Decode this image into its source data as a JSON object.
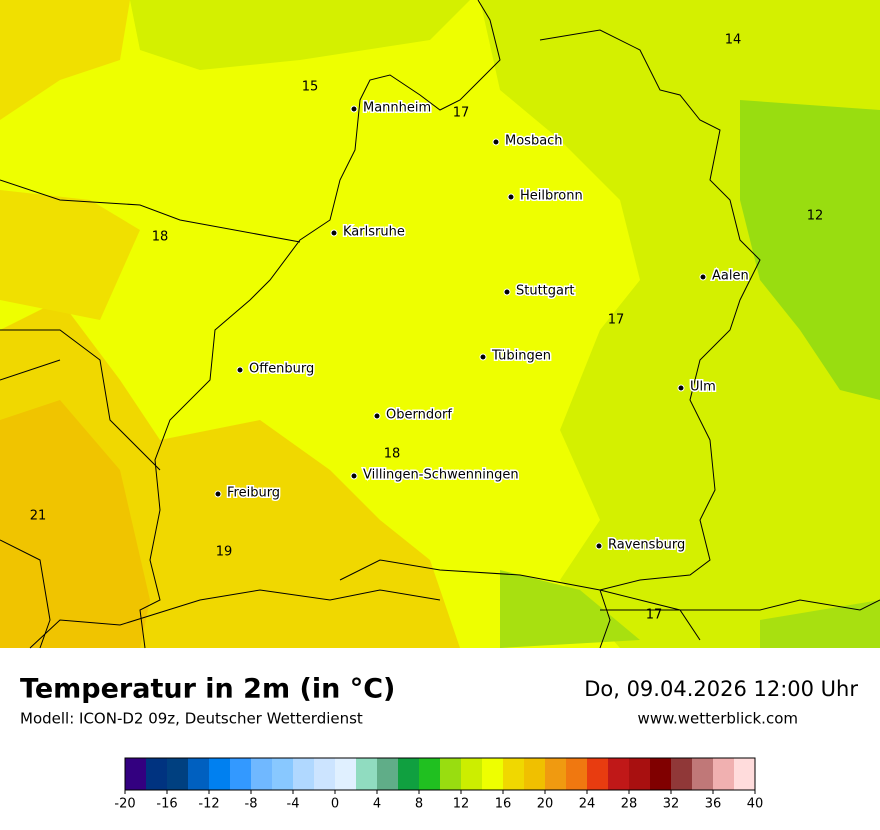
{
  "map": {
    "cities": [
      "Mannheim",
      "Mosbach",
      "Heilbronn",
      "Karlsruhe",
      "Aalen",
      "Stuttgart",
      "Tübingen",
      "Ulm",
      "Offenburg",
      "Oberndorf",
      "Villingen-Schwenningen",
      "Freiburg",
      "Ravensburg"
    ],
    "temperature_labels": [
      15,
      17,
      14,
      12,
      18,
      17,
      18,
      21,
      19,
      17
    ]
  },
  "header": {
    "title": "Temperatur in 2m (in °C)",
    "subtitle": "Modell: ICON-D2 09z, Deutscher Wetterdienst",
    "datetime": "Do, 09.04.2026 12:00 Uhr",
    "website": "www.wetterblick.com"
  },
  "colorbar": {
    "colors": [
      "#330080",
      "#003380",
      "#004080",
      "#0060c0",
      "#0080f0",
      "#3399ff",
      "#70b8ff",
      "#88c8ff",
      "#b0d8ff",
      "#cce4ff",
      "#e0f0ff",
      "#90dcc0",
      "#60ad88",
      "#10a040",
      "#20c020",
      "#99dd10",
      "#ccee00",
      "#eeff00",
      "#f0d800",
      "#f0c000",
      "#f09a10",
      "#f07810",
      "#e83c10",
      "#c01818",
      "#a81010",
      "#800000",
      "#903838",
      "#c07878",
      "#f0b0b0",
      "#ffdcdc"
    ],
    "ticks": [
      -20,
      -16,
      -12,
      -8,
      -4,
      0,
      4,
      8,
      12,
      16,
      20,
      24,
      28,
      32,
      36,
      40
    ]
  }
}
